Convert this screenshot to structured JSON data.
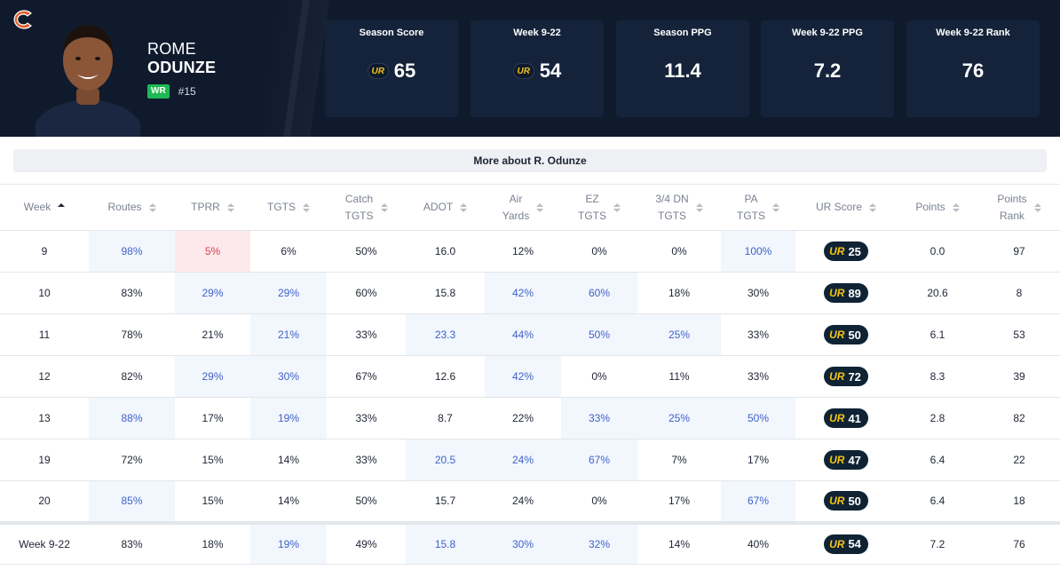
{
  "player": {
    "first_name": "ROME",
    "last_name": "ODUNZE",
    "position": "WR",
    "jersey": "#15"
  },
  "stat_cards": [
    {
      "title": "Season Score",
      "value": "65",
      "icon": "ur-logo-icon",
      "ur_text": "UR"
    },
    {
      "title": "Week 9-22",
      "value": "54",
      "icon": "ur-logo-icon",
      "ur_text": "UR"
    },
    {
      "title": "Season PPG",
      "value": "11.4"
    },
    {
      "title": "Week 9-22 PPG",
      "value": "7.2"
    },
    {
      "title": "Week 9-22 Rank",
      "value": "76"
    }
  ],
  "more_button": "More about R. Odunze",
  "table": {
    "ur_text": "UR",
    "columns": [
      {
        "line1": "Week",
        "line2": ""
      },
      {
        "line1": "Routes",
        "line2": ""
      },
      {
        "line1": "TPRR",
        "line2": ""
      },
      {
        "line1": "TGTS",
        "line2": ""
      },
      {
        "line1": "Catch",
        "line2": "TGTS"
      },
      {
        "line1": "ADOT",
        "line2": ""
      },
      {
        "line1": "Air",
        "line2": "Yards"
      },
      {
        "line1": "EZ",
        "line2": "TGTS"
      },
      {
        "line1": "3/4 DN",
        "line2": "TGTS"
      },
      {
        "line1": "PA",
        "line2": "TGTS"
      },
      {
        "line1": "UR Score",
        "line2": ""
      },
      {
        "line1": "Points",
        "line2": ""
      },
      {
        "line1": "Points",
        "line2": "Rank"
      }
    ],
    "rows": [
      [
        "9",
        "98%",
        "5%",
        "6%",
        "50%",
        "16.0",
        "12%",
        "0%",
        "0%",
        "100%",
        "25",
        "0.0",
        "97"
      ],
      [
        "10",
        "83%",
        "29%",
        "29%",
        "60%",
        "15.8",
        "42%",
        "60%",
        "18%",
        "30%",
        "89",
        "20.6",
        "8"
      ],
      [
        "11",
        "78%",
        "21%",
        "21%",
        "33%",
        "23.3",
        "44%",
        "50%",
        "25%",
        "33%",
        "50",
        "6.1",
        "53"
      ],
      [
        "12",
        "82%",
        "29%",
        "30%",
        "67%",
        "12.6",
        "42%",
        "0%",
        "11%",
        "33%",
        "72",
        "8.3",
        "39"
      ],
      [
        "13",
        "88%",
        "17%",
        "19%",
        "33%",
        "8.7",
        "22%",
        "33%",
        "25%",
        "50%",
        "41",
        "2.8",
        "82"
      ],
      [
        "19",
        "72%",
        "15%",
        "14%",
        "33%",
        "20.5",
        "24%",
        "67%",
        "7%",
        "17%",
        "47",
        "6.4",
        "22"
      ],
      [
        "20",
        "85%",
        "15%",
        "14%",
        "50%",
        "15.7",
        "24%",
        "0%",
        "17%",
        "67%",
        "50",
        "6.4",
        "18"
      ]
    ],
    "total": [
      "Week 9-22",
      "83%",
      "18%",
      "19%",
      "49%",
      "15.8",
      "30%",
      "32%",
      "14%",
      "40%",
      "54",
      "7.2",
      "76"
    ],
    "highlights": {
      "blue_color": "#f2f6fd",
      "red_color": "#fde9ec"
    }
  }
}
